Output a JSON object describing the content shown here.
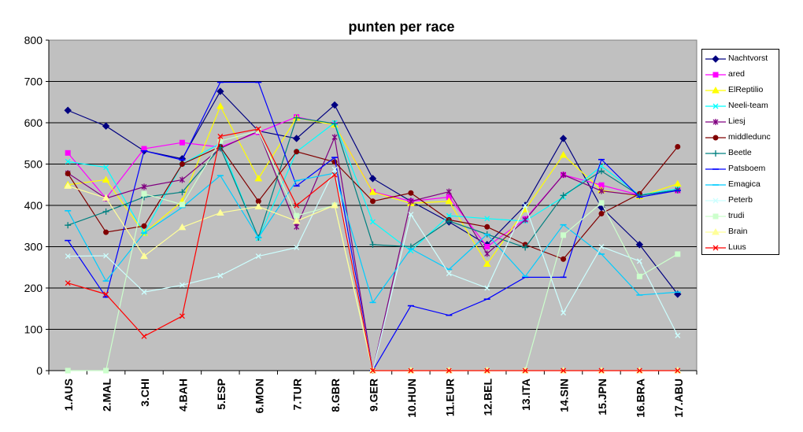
{
  "chart_data": {
    "type": "line",
    "title": "punten per race",
    "xlabel": "",
    "ylabel": "",
    "ylim": [
      0,
      800
    ],
    "yticks": [
      0,
      100,
      200,
      300,
      400,
      500,
      600,
      700,
      800
    ],
    "grid": "horizontal",
    "legend_position": "right",
    "plot_background": "#c0c0c0",
    "categories": [
      "1.AUS",
      "2.MAL",
      "3.CHI",
      "4.BAH",
      "5.ESP",
      "6.MON",
      "7.TUR",
      "8.GBR",
      "9.GER",
      "10.HUN",
      "11.EUR",
      "12.BEL",
      "13.ITA",
      "14.SIN",
      "15.JPN",
      "16.BRA",
      "17.ABU"
    ],
    "series": [
      {
        "name": "Nachtvorst",
        "color": "#000080",
        "marker": "diamond",
        "values": [
          630,
          592,
          532,
          513,
          676,
          580,
          562,
          643,
          465,
          410,
          360,
          305,
          400,
          562,
          395,
          305,
          185
        ]
      },
      {
        "name": "ared",
        "color": "#ff00ff",
        "marker": "square",
        "values": [
          527,
          417,
          537,
          552,
          541,
          577,
          614,
          595,
          433,
          410,
          420,
          300,
          367,
          474,
          449,
          425,
          436
        ]
      },
      {
        "name": "ElReptilio",
        "color": "#ffff00",
        "marker": "triangle",
        "values": [
          450,
          462,
          333,
          410,
          640,
          465,
          612,
          595,
          432,
          405,
          410,
          258,
          390,
          522,
          437,
          422,
          452
        ]
      },
      {
        "name": "Neeli-team",
        "color": "#00ffff",
        "marker": "x",
        "values": [
          506,
          492,
          333,
          500,
          550,
          320,
          530,
          600,
          360,
          290,
          375,
          368,
          362,
          420,
          495,
          425,
          440
        ]
      },
      {
        "name": "Liesj",
        "color": "#800080",
        "marker": "star",
        "values": [
          478,
          417,
          445,
          462,
          538,
          580,
          348,
          565,
          0,
          410,
          433,
          283,
          365,
          474,
          435,
          424,
          437
        ]
      },
      {
        "name": "middledunc",
        "color": "#800000",
        "marker": "circle",
        "values": [
          477,
          335,
          350,
          500,
          542,
          410,
          530,
          505,
          410,
          430,
          365,
          348,
          305,
          270,
          380,
          428,
          542
        ]
      },
      {
        "name": "Beetle",
        "color": "#008080",
        "marker": "plus",
        "values": [
          352,
          385,
          420,
          432,
          540,
          322,
          612,
          598,
          305,
          300,
          362,
          330,
          298,
          424,
          483,
          424,
          437
        ]
      },
      {
        "name": "Patsboem",
        "color": "#0000ff",
        "marker": "dash",
        "values": [
          315,
          178,
          532,
          510,
          698,
          698,
          447,
          516,
          0,
          157,
          134,
          173,
          226,
          226,
          511,
          420,
          436
        ]
      },
      {
        "name": "Emagica",
        "color": "#00ccff",
        "marker": "dash",
        "values": [
          387,
          217,
          333,
          395,
          472,
          322,
          460,
          478,
          165,
          295,
          245,
          330,
          228,
          353,
          282,
          183,
          190
        ]
      },
      {
        "name": "Peterb",
        "color": "#ccffff",
        "marker": "x",
        "values": [
          277,
          278,
          190,
          207,
          230,
          277,
          298,
          487,
          0,
          378,
          235,
          200,
          400,
          140,
          300,
          265,
          85
        ]
      },
      {
        "name": "trudi",
        "color": "#ccffcc",
        "marker": "square",
        "values": [
          0,
          0,
          428,
          402,
          556,
          580,
          375,
          400,
          0,
          0,
          0,
          0,
          0,
          328,
          406,
          228,
          282
        ]
      },
      {
        "name": "Brain",
        "color": "#ffff99",
        "marker": "triangle",
        "values": [
          447,
          418,
          277,
          347,
          382,
          397,
          362,
          400,
          0,
          0,
          0,
          0,
          0,
          0,
          0,
          0,
          0
        ]
      },
      {
        "name": "Luus",
        "color": "#ff0000",
        "marker": "x",
        "values": [
          212,
          185,
          83,
          132,
          567,
          585,
          400,
          474,
          0,
          0,
          0,
          0,
          0,
          0,
          0,
          0,
          0
        ]
      }
    ]
  }
}
